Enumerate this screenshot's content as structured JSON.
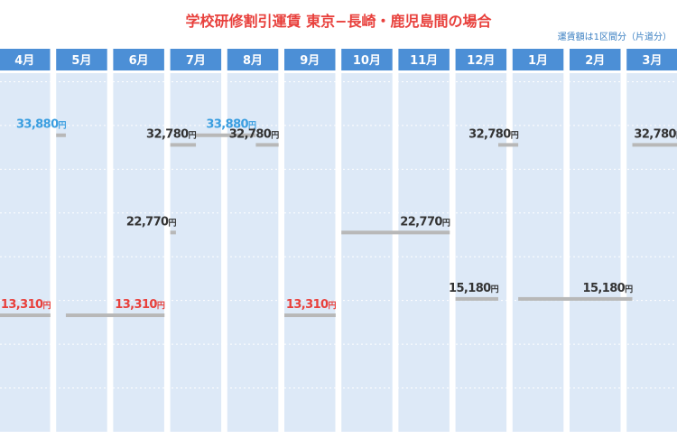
{
  "title": "学校研修割引運賃 東京−長崎・鹿児島間の場合",
  "note": "運賃額は1区間分（片道分）",
  "chart_data": {
    "type": "bar",
    "title": "学校研修割引運賃 東京−長崎・鹿児島間の場合",
    "categories": [
      "4月",
      "5月",
      "6月",
      "7月",
      "8月",
      "9月",
      "10月",
      "11月",
      "12月",
      "1月",
      "2月",
      "3月"
    ],
    "unit": "円",
    "ylim": [
      0,
      45000
    ],
    "grid": true,
    "colors": {
      "header": "#4c8fd6",
      "column": "#dde9f7",
      "line": "#b8b8b8",
      "high": "#3a9ee0",
      "low": "#e8403c",
      "normal": "#333333"
    },
    "segments": [
      {
        "start": 0.0,
        "end": 0.9,
        "value": 13310,
        "label": "13,310",
        "color": "low"
      },
      {
        "start": 1.17,
        "end": 2.9,
        "value": 13310,
        "label": "13,310",
        "color": "low"
      },
      {
        "start": 1.0,
        "end": 1.17,
        "value": 33880,
        "label": "33,880",
        "color": "high"
      },
      {
        "start": 3.0,
        "end": 3.45,
        "value": 32780,
        "label": "32,780",
        "color": "normal"
      },
      {
        "start": 3.0,
        "end": 3.1,
        "value": 22770,
        "label": "22,770",
        "color": "normal"
      },
      {
        "start": 3.45,
        "end": 4.5,
        "value": 33880,
        "label": "33,880",
        "color": "high"
      },
      {
        "start": 4.5,
        "end": 4.9,
        "value": 32780,
        "label": "32,780",
        "color": "normal"
      },
      {
        "start": 5.0,
        "end": 5.9,
        "value": 13310,
        "label": "13,310",
        "color": "low"
      },
      {
        "start": 6.0,
        "end": 7.9,
        "value": 22770,
        "label": "22,770",
        "color": "normal"
      },
      {
        "start": 8.0,
        "end": 8.75,
        "value": 15180,
        "label": "15,180",
        "color": "normal"
      },
      {
        "start": 8.75,
        "end": 9.1,
        "value": 32780,
        "label": "32,780",
        "color": "normal"
      },
      {
        "start": 9.1,
        "end": 11.1,
        "value": 15180,
        "label": "15,180",
        "color": "normal"
      },
      {
        "start": 11.1,
        "end": 12.0,
        "value": 32780,
        "label": "32,780",
        "color": "normal"
      }
    ]
  }
}
